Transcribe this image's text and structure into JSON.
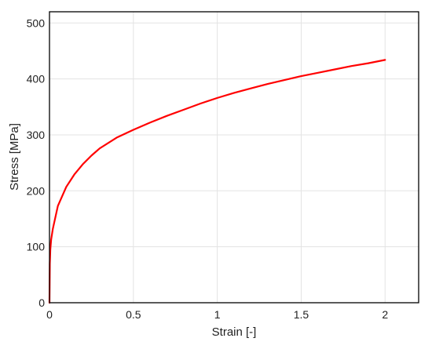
{
  "chart_data": {
    "type": "line",
    "title": "",
    "xlabel": "Strain [-]",
    "ylabel": "Stress [MPa]",
    "xlim": [
      0,
      2.2
    ],
    "ylim": [
      0,
      520
    ],
    "xticks": [
      0,
      0.5,
      1,
      1.5,
      2
    ],
    "xtick_labels": [
      "0",
      "0.5",
      "1",
      "1.5",
      "2"
    ],
    "yticks": [
      0,
      100,
      200,
      300,
      400,
      500
    ],
    "ytick_labels": [
      "0",
      "100",
      "200",
      "300",
      "400",
      "500"
    ],
    "grid": true,
    "legend": "none",
    "series": [
      {
        "color": "#ff0000",
        "x": [
          0,
          0.002,
          0.005,
          0.01,
          0.02,
          0.05,
          0.1,
          0.15,
          0.2,
          0.25,
          0.3,
          0.4,
          0.5,
          0.6,
          0.7,
          0.8,
          0.9,
          1.0,
          1.1,
          1.2,
          1.3,
          1.4,
          1.5,
          1.6,
          1.7,
          1.8,
          1.9,
          2.0
        ],
        "y": [
          0,
          70,
          95,
          113,
          132,
          173,
          207,
          230,
          248,
          263,
          276,
          295,
          309,
          322,
          334,
          345,
          356,
          366,
          375,
          383,
          391,
          398,
          405,
          411,
          417,
          423,
          428,
          434
        ]
      }
    ]
  }
}
